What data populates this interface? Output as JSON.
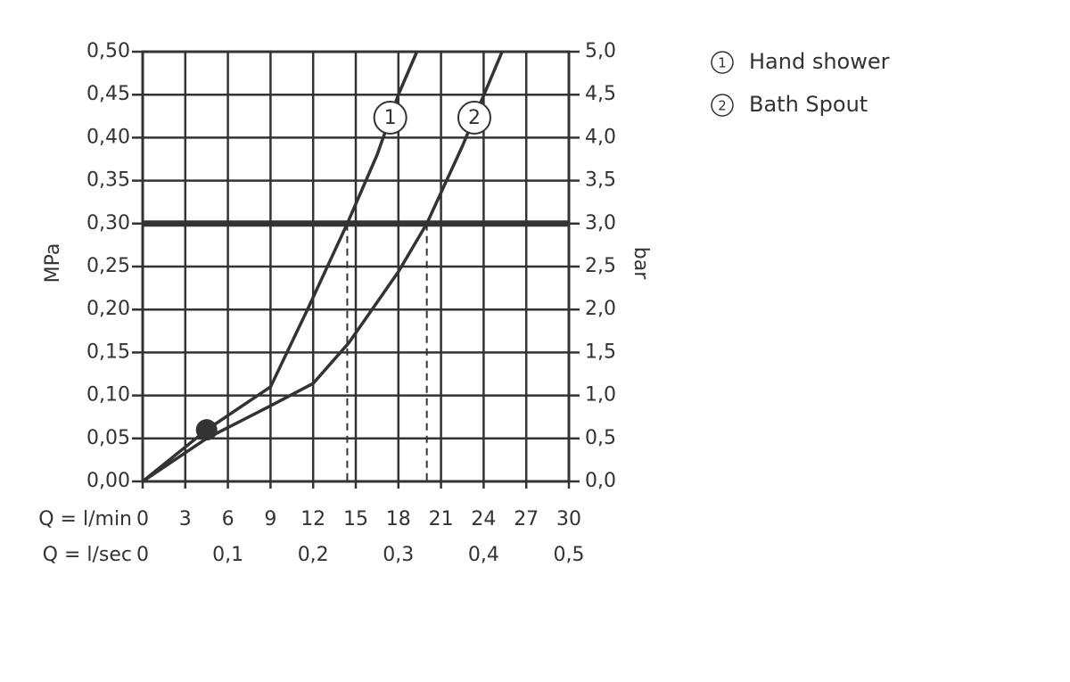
{
  "chart_data": {
    "type": "line",
    "ylabel": "MPa",
    "y2label": "bar",
    "xlabel": "Q = l/min",
    "x2label": "Q = l/sec",
    "xlim": [
      0,
      30
    ],
    "xticks": [
      0,
      3,
      6,
      9,
      12,
      15,
      18,
      21,
      24,
      27,
      30
    ],
    "x2lim": [
      0,
      0.5
    ],
    "x2ticks": [
      0,
      {
        "value": 0.1,
        "label": "0,1"
      },
      {
        "value": 0.2,
        "label": "0,2"
      },
      {
        "value": 0.3,
        "label": "0,3"
      },
      {
        "value": 0.4,
        "label": "0,4"
      },
      {
        "value": 0.5,
        "label": "0,5"
      }
    ],
    "ylim": [
      0,
      0.5
    ],
    "yticks": [
      {
        "value": 0,
        "label": "0,00"
      },
      {
        "value": 0.05,
        "label": "0,05"
      },
      {
        "value": 0.1,
        "label": "0,10"
      },
      {
        "value": 0.15,
        "label": "0,15"
      },
      {
        "value": 0.2,
        "label": "0,20"
      },
      {
        "value": 0.25,
        "label": "0,25"
      },
      {
        "value": 0.3,
        "label": "0,30"
      },
      {
        "value": 0.35,
        "label": "0,35"
      },
      {
        "value": 0.4,
        "label": "0,40"
      },
      {
        "value": 0.45,
        "label": "0,45"
      },
      {
        "value": 0.5,
        "label": "0,50"
      }
    ],
    "y2lim": [
      0,
      5
    ],
    "y2ticks": [
      {
        "value": 0,
        "label": "0,0"
      },
      {
        "value": 0.5,
        "label": "0,5"
      },
      {
        "value": 1,
        "label": "1,0"
      },
      {
        "value": 1.5,
        "label": "1,5"
      },
      {
        "value": 2,
        "label": "2,0"
      },
      {
        "value": 2.5,
        "label": "2,5"
      },
      {
        "value": 3,
        "label": "3,0"
      },
      {
        "value": 3.5,
        "label": "3,5"
      },
      {
        "value": 4,
        "label": "4,0"
      },
      {
        "value": 4.5,
        "label": "4,5"
      },
      {
        "value": 5,
        "label": "5,0"
      }
    ],
    "grid": true,
    "color": "#333333",
    "reference_pressure": 0.3,
    "marker": {
      "x": 4.5,
      "y": 0.06
    },
    "series": [
      {
        "name": "Hand shower",
        "label": "1",
        "color": "#333333",
        "operating_flow": 14.4,
        "x": [
          0,
          4.5,
          9,
          11.6,
          14.4,
          16.5,
          18,
          19.3
        ],
        "values": [
          0,
          0.06,
          0.11,
          0.2,
          0.3,
          0.38,
          0.45,
          0.5
        ]
      },
      {
        "name": "Bath Spout",
        "label": "2",
        "color": "#333333",
        "operating_flow": 20,
        "x": [
          0,
          4.5,
          9,
          12,
          14.5,
          18,
          20,
          22.5,
          25.3
        ],
        "values": [
          0,
          0.05,
          0.088,
          0.114,
          0.161,
          0.244,
          0.3,
          0.39,
          0.5
        ]
      }
    ]
  }
}
